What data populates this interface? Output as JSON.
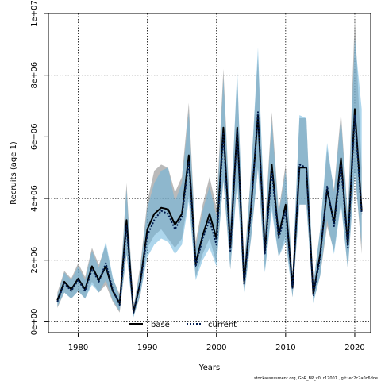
{
  "chart_data": {
    "type": "line",
    "xlabel": "Years",
    "ylabel": "Recruits (age 1)",
    "xlim": [
      1975.7,
      2022.3
    ],
    "ylim": [
      -350000,
      10000000
    ],
    "x_ticks": [
      {
        "value": 1980,
        "label": "1980"
      },
      {
        "value": 1990,
        "label": "1990"
      },
      {
        "value": 2000,
        "label": "2000"
      },
      {
        "value": 2010,
        "label": "2010"
      },
      {
        "value": 2020,
        "label": "2020"
      }
    ],
    "y_ticks": [
      {
        "value": 0,
        "label": "0e+00"
      },
      {
        "value": 2000000,
        "label": "2e+06"
      },
      {
        "value": 4000000,
        "label": "4e+06"
      },
      {
        "value": 6000000,
        "label": "6e+06"
      },
      {
        "value": 8000000,
        "label": "8e+06"
      },
      {
        "value": 10000000,
        "label": "1e+07"
      }
    ],
    "grid": true,
    "legend_position": "bottom-center",
    "x": [
      1977,
      1978,
      1979,
      1980,
      1981,
      1982,
      1983,
      1984,
      1985,
      1986,
      1987,
      1988,
      1989,
      1990,
      1991,
      1992,
      1993,
      1994,
      1995,
      1996,
      1997,
      1998,
      1999,
      2000,
      2001,
      2002,
      2003,
      2004,
      2005,
      2006,
      2007,
      2008,
      2009,
      2010,
      2011,
      2012,
      2013,
      2014,
      2015,
      2016,
      2017,
      2018,
      2019,
      2020,
      2021
    ],
    "series": [
      {
        "name": "base",
        "color": "#000000",
        "band_color": "#8c8c8c",
        "values": [
          700000,
          1300000,
          1050000,
          1400000,
          1050000,
          1800000,
          1350000,
          1800000,
          1000000,
          600000,
          3300000,
          300000,
          1300000,
          3000000,
          3500000,
          3700000,
          3650000,
          3150000,
          3500000,
          5400000,
          1900000,
          2800000,
          3500000,
          2700000,
          6300000,
          2400000,
          6300000,
          1300000,
          3700000,
          6700000,
          2300000,
          5100000,
          2800000,
          3800000,
          1100000,
          5000000,
          5000000,
          900000,
          2200000,
          4300000,
          3200000,
          5300000,
          2500000,
          6900000,
          3600000
        ],
        "lower": [
          450000,
          950000,
          750000,
          1000000,
          750000,
          1300000,
          950000,
          1200000,
          650000,
          300000,
          2200000,
          180000,
          850000,
          2400000,
          2800000,
          3000000,
          2700000,
          2400000,
          2700000,
          4100000,
          1450000,
          2200000,
          2700000,
          1900000,
          4600000,
          1700000,
          4600000,
          900000,
          2700000,
          5000000,
          1650000,
          3800000,
          2100000,
          2800000,
          800000,
          3800000,
          3800000,
          650000,
          1500000,
          3100000,
          2300000,
          3900000,
          1700000,
          5000000,
          2200000
        ],
        "upper": [
          950000,
          1650000,
          1400000,
          1900000,
          1450000,
          2400000,
          1850000,
          2500000,
          1400000,
          900000,
          4500000,
          450000,
          1850000,
          3900000,
          4900000,
          5100000,
          5000000,
          4200000,
          4700000,
          7100000,
          2600000,
          3800000,
          4700000,
          3700000,
          8200000,
          3300000,
          8000000,
          1800000,
          4900000,
          8600000,
          3100000,
          6800000,
          3600000,
          5100000,
          1500000,
          6600000,
          6600000,
          1200000,
          3000000,
          5600000,
          4300000,
          6800000,
          3400000,
          9900000,
          5000000
        ]
      },
      {
        "name": "current",
        "color": "#001a4d",
        "band_color": "#6ab4dc",
        "values": [
          650000,
          1250000,
          1000000,
          1350000,
          1000000,
          1700000,
          1300000,
          1900000,
          1050000,
          550000,
          3100000,
          300000,
          1250000,
          2800000,
          3300000,
          3600000,
          3500000,
          3000000,
          3400000,
          5200000,
          1800000,
          2700000,
          3300000,
          2500000,
          6100000,
          2300000,
          6200000,
          1200000,
          3600000,
          6800000,
          2200000,
          4900000,
          2700000,
          3600000,
          1100000,
          5100000,
          5000000,
          850000,
          2100000,
          4400000,
          3100000,
          5100000,
          2400000,
          6700000,
          3500000
        ],
        "lower": [
          500000,
          950000,
          750000,
          1000000,
          750000,
          1200000,
          950000,
          1350000,
          700000,
          350000,
          2200000,
          150000,
          900000,
          2100000,
          2500000,
          2700000,
          2600000,
          2200000,
          2500000,
          3900000,
          1350000,
          2000000,
          2400000,
          1800000,
          4600000,
          1700000,
          4500000,
          850000,
          2700000,
          5000000,
          1600000,
          3600000,
          2100000,
          2600000,
          800000,
          3800000,
          3800000,
          600000,
          1500000,
          3300000,
          2200000,
          3800000,
          1700000,
          4800000,
          2500000
        ],
        "upper": [
          850000,
          1600000,
          1350000,
          1800000,
          1350000,
          2300000,
          1750000,
          2600000,
          1450000,
          800000,
          4300000,
          450000,
          1700000,
          3700000,
          4500000,
          4900000,
          5000000,
          3900000,
          4500000,
          6800000,
          2400000,
          3600000,
          4400000,
          3400000,
          7900000,
          3200000,
          8200000,
          1700000,
          4800000,
          8900000,
          3000000,
          6500000,
          3500000,
          4900000,
          1500000,
          6700000,
          6600000,
          1200000,
          3000000,
          5800000,
          4200000,
          6600000,
          3300000,
          9200000,
          6900000
        ]
      }
    ]
  },
  "footer": "stockassessment.org, GoR_BP_v0, r17007 , git: ec2c2a0c6dde"
}
